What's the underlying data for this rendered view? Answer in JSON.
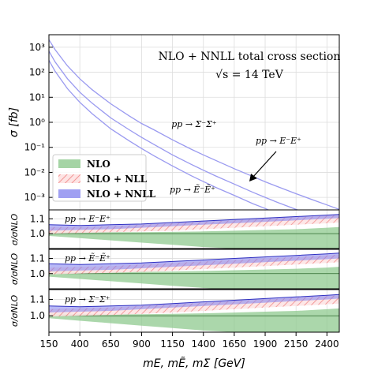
{
  "figure": {
    "title_line1": "NLO + NNLL total cross section",
    "title_line2": "√s = 14 TeV"
  },
  "chart_data": [
    {
      "type": "line",
      "panel": "main",
      "x": [
        150,
        200,
        300,
        400,
        500,
        650,
        800,
        900,
        1000,
        1150,
        1300,
        1400,
        1500,
        1650,
        1800,
        1900,
        2000,
        2150,
        2300,
        2400,
        2500
      ],
      "series": [
        {
          "name": "pp → Σ⁻Σ⁺",
          "values": [
            2000,
            800,
            180,
            55,
            20,
            5.5,
            1.8,
            0.9,
            0.5,
            0.2,
            0.085,
            0.05,
            0.03,
            0.014,
            0.0068,
            0.0042,
            0.0027,
            0.0014,
            0.00075,
            0.0005,
            0.00033
          ]
        },
        {
          "name": "pp → E⁻E⁺",
          "values": [
            700,
            260,
            55,
            16,
            5.8,
            1.5,
            0.5,
            0.25,
            0.13,
            0.05,
            0.021,
            0.0122,
            0.0072,
            0.0034,
            0.0016,
            0.001,
            0.00063,
            0.00033,
            0.00018,
            0.00012,
            8e-05
          ]
        },
        {
          "name": "pp → Ẽ⁻Ẽ⁺",
          "values": [
            300,
            110,
            22,
            6.3,
            2.2,
            0.55,
            0.18,
            0.09,
            0.046,
            0.018,
            0.0074,
            0.0043,
            0.0025,
            0.0012,
            0.00056,
            0.00036,
            0.00022,
            0.00012,
            6.4e-05,
            4.2e-05,
            2.8e-05
          ]
        }
      ],
      "labels": {
        "sigma_sigma": "pp → Σ⁻Σ⁺",
        "ee": "pp → E⁻E⁺",
        "ee_tilde": "pp → Ẽ⁻Ẽ⁺"
      },
      "ylabel": "σ [fb]",
      "ylim_log10": [
        -3.5,
        3.5
      ],
      "yticks": [
        "10³",
        "10²",
        "10¹",
        "10⁰",
        "10⁻¹",
        "10⁻²",
        "10⁻³"
      ],
      "ytick_exponents": [
        3,
        2,
        1,
        0,
        -1,
        -2,
        -3
      ],
      "legend": {
        "position": "lower-left",
        "entries": [
          {
            "label": "NLO",
            "color": "#8fc98f"
          },
          {
            "label": "NLO + NLL",
            "color": "#f08080"
          },
          {
            "label": "NLO + NNLL",
            "color": "#8080ee"
          }
        ]
      },
      "line_color": "#9a9af0",
      "grid": true
    },
    {
      "type": "area",
      "panel": "ratio",
      "title": "pp → E⁻E⁺",
      "ylabel": "σ/σNLO",
      "ylim": [
        0.9,
        1.16
      ],
      "yticks": [
        "1.0",
        "1.1"
      ],
      "x": [
        150,
        400,
        650,
        900,
        1150,
        1400,
        1650,
        1900,
        2150,
        2400,
        2500
      ],
      "nlo_band": {
        "upper": [
          1.015,
          1.012,
          1.01,
          1.01,
          1.012,
          1.015,
          1.02,
          1.025,
          1.03,
          1.04,
          1.045
        ],
        "lower": [
          0.985,
          0.97,
          0.955,
          0.94,
          0.925,
          0.91,
          0.9,
          0.89,
          0.88,
          0.87,
          0.865
        ]
      },
      "nll_band": {
        "upper": [
          1.045,
          1.045,
          1.05,
          1.06,
          1.07,
          1.08,
          1.09,
          1.1,
          1.11,
          1.12,
          1.125
        ],
        "lower": [
          1.0,
          1.005,
          1.01,
          1.015,
          1.02,
          1.03,
          1.04,
          1.05,
          1.06,
          1.07,
          1.075
        ]
      },
      "nnll_band": {
        "upper": [
          1.06,
          1.055,
          1.06,
          1.065,
          1.075,
          1.085,
          1.095,
          1.105,
          1.115,
          1.125,
          1.13
        ],
        "lower": [
          1.02,
          1.025,
          1.03,
          1.04,
          1.05,
          1.06,
          1.07,
          1.08,
          1.09,
          1.1,
          1.105
        ]
      }
    },
    {
      "type": "area",
      "panel": "ratio",
      "title": "pp → Ẽ⁻Ẽ⁺",
      "ylabel": "σ/σNLO",
      "ylim": [
        0.9,
        1.16
      ],
      "yticks": [
        "1.0",
        "1.1"
      ],
      "x": [
        150,
        400,
        650,
        900,
        1150,
        1400,
        1650,
        1900,
        2150,
        2400,
        2500
      ],
      "nlo_band": {
        "upper": [
          1.02,
          1.015,
          1.012,
          1.012,
          1.014,
          1.017,
          1.022,
          1.027,
          1.032,
          1.04,
          1.045
        ],
        "lower": [
          0.98,
          0.965,
          0.95,
          0.935,
          0.92,
          0.905,
          0.895,
          0.885,
          0.875,
          0.865,
          0.86
        ]
      },
      "nll_band": {
        "upper": [
          1.04,
          1.045,
          1.05,
          1.06,
          1.07,
          1.08,
          1.09,
          1.1,
          1.11,
          1.12,
          1.125
        ],
        "lower": [
          0.995,
          1.0,
          1.005,
          1.012,
          1.02,
          1.03,
          1.04,
          1.05,
          1.06,
          1.07,
          1.075
        ]
      },
      "nnll_band": {
        "upper": [
          1.065,
          1.06,
          1.065,
          1.07,
          1.08,
          1.09,
          1.1,
          1.11,
          1.12,
          1.13,
          1.135
        ],
        "lower": [
          1.015,
          1.02,
          1.025,
          1.035,
          1.045,
          1.055,
          1.065,
          1.075,
          1.085,
          1.095,
          1.1
        ]
      }
    },
    {
      "type": "area",
      "panel": "ratio",
      "title": "pp → Σ⁻Σ⁺",
      "ylabel": "σ/σNLO",
      "ylim": [
        0.9,
        1.16
      ],
      "yticks": [
        "1.0",
        "1.1"
      ],
      "x": [
        150,
        400,
        650,
        900,
        1150,
        1400,
        1650,
        1900,
        2150,
        2400,
        2500
      ],
      "nlo_band": {
        "upper": [
          1.015,
          1.012,
          1.01,
          1.01,
          1.012,
          1.015,
          1.02,
          1.025,
          1.03,
          1.04,
          1.045
        ],
        "lower": [
          0.985,
          0.97,
          0.955,
          0.94,
          0.925,
          0.91,
          0.9,
          0.89,
          0.88,
          0.87,
          0.865
        ]
      },
      "nll_band": {
        "upper": [
          1.04,
          1.045,
          1.05,
          1.06,
          1.07,
          1.08,
          1.09,
          1.1,
          1.11,
          1.12,
          1.125
        ],
        "lower": [
          0.995,
          1.0,
          1.005,
          1.012,
          1.02,
          1.03,
          1.04,
          1.05,
          1.06,
          1.07,
          1.075
        ]
      },
      "nnll_band": {
        "upper": [
          1.06,
          1.055,
          1.06,
          1.065,
          1.075,
          1.085,
          1.095,
          1.105,
          1.115,
          1.125,
          1.13
        ],
        "lower": [
          1.02,
          1.025,
          1.03,
          1.04,
          1.05,
          1.06,
          1.07,
          1.08,
          1.09,
          1.1,
          1.105
        ]
      }
    }
  ],
  "x_axis": {
    "label": "mE, mẼ, mΣ [GeV]",
    "xlim": [
      150,
      2500
    ],
    "ticks": [
      150,
      400,
      650,
      900,
      1150,
      1400,
      1650,
      1900,
      2150,
      2400
    ]
  }
}
